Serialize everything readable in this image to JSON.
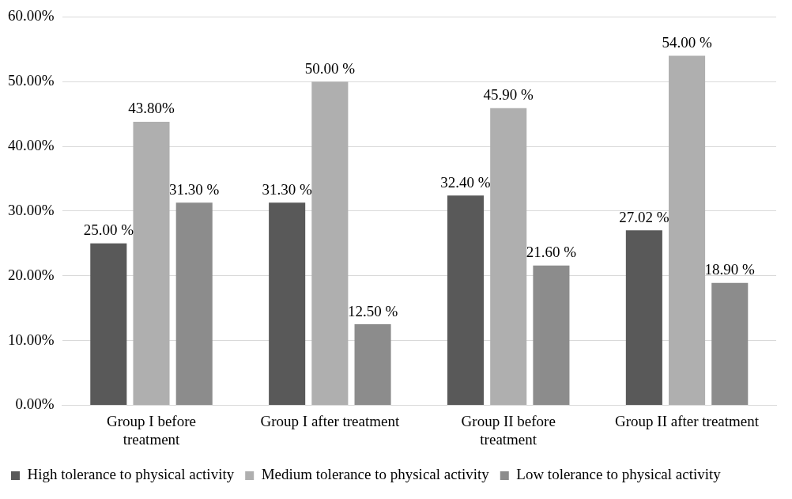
{
  "chart_data": {
    "type": "bar",
    "categories": [
      "Group I before\ntreatment",
      "Group I after treatment",
      "Group II before\ntreatment",
      "Group II after treatment"
    ],
    "series": [
      {
        "name": "High tolerance to physical activity",
        "color": "#595959",
        "values": [
          25.0,
          31.3,
          32.4,
          27.02
        ],
        "value_labels": [
          "25.00 %",
          "31.30 %",
          "32.40 %",
          "27.02 %"
        ]
      },
      {
        "name": "Medium tolerance to physical activity",
        "color": "#afafaf",
        "values": [
          43.8,
          50.0,
          45.9,
          54.0
        ],
        "value_labels": [
          "43.80%",
          "50.00 %",
          "45.90 %",
          "54.00 %"
        ]
      },
      {
        "name": "Low tolerance to physical activity",
        "color": "#8c8c8c",
        "values": [
          31.3,
          12.5,
          21.6,
          18.9
        ],
        "value_labels": [
          "31.30 %",
          "12.50 %",
          "21.60 %",
          "18.90 %"
        ]
      }
    ],
    "ylim": [
      0,
      60
    ],
    "yticks": [
      {
        "value": 0,
        "label": "0.00%"
      },
      {
        "value": 10,
        "label": "10.00%"
      },
      {
        "value": 20,
        "label": "20.00%"
      },
      {
        "value": 30,
        "label": "30.00%"
      },
      {
        "value": 40,
        "label": "40.00%"
      },
      {
        "value": 50,
        "label": "50.00%"
      },
      {
        "value": 60,
        "label": "60.00%"
      }
    ],
    "grid": "y",
    "legend": "bottom"
  }
}
